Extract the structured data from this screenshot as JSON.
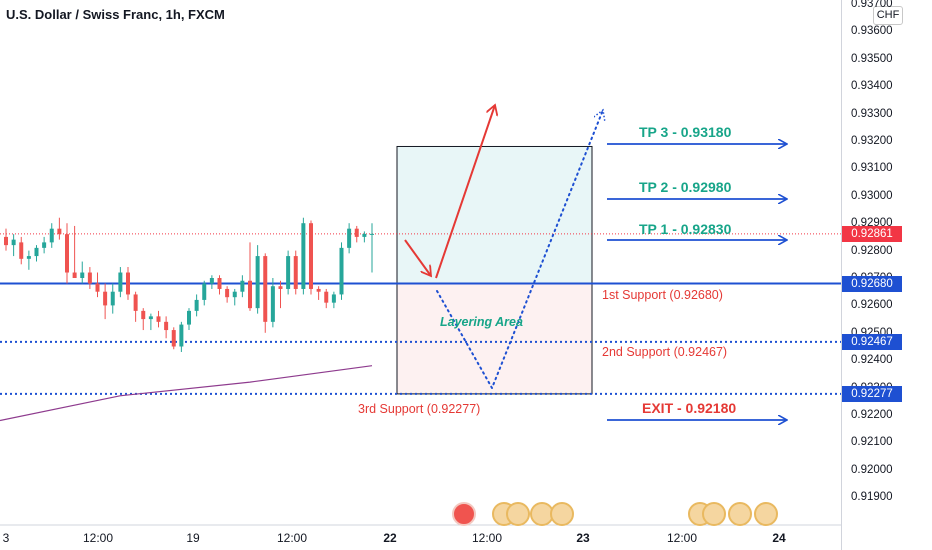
{
  "header": {
    "symbol": "U.S. Dollar / Swiss Franc, 1h, FXCM",
    "currency": "CHF"
  },
  "chart_data": {
    "type": "candlestick",
    "ylim": [
      0.918,
      0.9373
    ],
    "y_ticks": [
      "0.93700",
      "0.93600",
      "0.93500",
      "0.93400",
      "0.93300",
      "0.93200",
      "0.93100",
      "0.93000",
      "0.92900",
      "0.92800",
      "0.92700",
      "0.92600",
      "0.92500",
      "0.92400",
      "0.92300",
      "0.92200",
      "0.92100",
      "0.92000",
      "0.91900"
    ],
    "x_ticks": [
      "3",
      "12:00",
      "19",
      "12:00",
      "22",
      "12:00",
      "23",
      "12:00",
      "24"
    ],
    "price_tags": [
      {
        "value": "0.92861",
        "color": "#f23645"
      },
      {
        "value": "0.92680",
        "color": "#1e50d2"
      },
      {
        "value": "0.92467",
        "color": "#1e50d2"
      },
      {
        "value": "0.92277",
        "color": "#1e50d2"
      }
    ],
    "levels": {
      "current": 0.92861,
      "support1": 0.9268,
      "support2": 0.92467,
      "support3": 0.92277
    },
    "candles": [
      [
        0.9285,
        0.9288,
        0.928,
        0.9282
      ],
      [
        0.9282,
        0.9286,
        0.9278,
        0.9284
      ],
      [
        0.9283,
        0.9285,
        0.9275,
        0.9277
      ],
      [
        0.9277,
        0.928,
        0.9273,
        0.9278
      ],
      [
        0.9278,
        0.9282,
        0.9276,
        0.9281
      ],
      [
        0.9281,
        0.9285,
        0.9279,
        0.9283
      ],
      [
        0.9283,
        0.929,
        0.9281,
        0.9288
      ],
      [
        0.9288,
        0.9292,
        0.9284,
        0.9286
      ],
      [
        0.9286,
        0.929,
        0.9268,
        0.9272
      ],
      [
        0.9272,
        0.9289,
        0.927,
        0.927
      ],
      [
        0.927,
        0.9276,
        0.9268,
        0.9272
      ],
      [
        0.9272,
        0.9274,
        0.9266,
        0.9268
      ],
      [
        0.9268,
        0.9272,
        0.9263,
        0.9265
      ],
      [
        0.9265,
        0.9268,
        0.9255,
        0.926
      ],
      [
        0.926,
        0.9268,
        0.9257,
        0.9265
      ],
      [
        0.9265,
        0.9274,
        0.9263,
        0.9272
      ],
      [
        0.9272,
        0.9274,
        0.9262,
        0.9264
      ],
      [
        0.9264,
        0.9265,
        0.9254,
        0.9258
      ],
      [
        0.9258,
        0.9259,
        0.9251,
        0.9255
      ],
      [
        0.9255,
        0.9257,
        0.9251,
        0.9256
      ],
      [
        0.9256,
        0.9258,
        0.9252,
        0.9254
      ],
      [
        0.9254,
        0.9256,
        0.9248,
        0.9251
      ],
      [
        0.9251,
        0.9252,
        0.9244,
        0.9245
      ],
      [
        0.9245,
        0.9254,
        0.9243,
        0.9253
      ],
      [
        0.9253,
        0.9259,
        0.9251,
        0.9258
      ],
      [
        0.9258,
        0.9264,
        0.9256,
        0.9262
      ],
      [
        0.9262,
        0.9269,
        0.926,
        0.9268
      ],
      [
        0.9268,
        0.9271,
        0.9266,
        0.927
      ],
      [
        0.927,
        0.9271,
        0.9264,
        0.9266
      ],
      [
        0.9266,
        0.9267,
        0.9261,
        0.9263
      ],
      [
        0.9263,
        0.9266,
        0.926,
        0.9265
      ],
      [
        0.9265,
        0.9271,
        0.9263,
        0.9269
      ],
      [
        0.9269,
        0.9283,
        0.9258,
        0.9259
      ],
      [
        0.9259,
        0.9282,
        0.9257,
        0.9278
      ],
      [
        0.9278,
        0.9279,
        0.925,
        0.9254
      ],
      [
        0.9254,
        0.927,
        0.9252,
        0.9267
      ],
      [
        0.9267,
        0.9269,
        0.9259,
        0.9266
      ],
      [
        0.9266,
        0.928,
        0.9264,
        0.9278
      ],
      [
        0.9278,
        0.928,
        0.9264,
        0.9266
      ],
      [
        0.9266,
        0.9292,
        0.9264,
        0.929
      ],
      [
        0.929,
        0.9291,
        0.9264,
        0.9266
      ],
      [
        0.9266,
        0.9267,
        0.9262,
        0.9265
      ],
      [
        0.9265,
        0.9266,
        0.9259,
        0.9261
      ],
      [
        0.9261,
        0.9265,
        0.9259,
        0.9264
      ],
      [
        0.9264,
        0.9283,
        0.9262,
        0.9281
      ],
      [
        0.9281,
        0.929,
        0.9279,
        0.9288
      ],
      [
        0.9288,
        0.9289,
        0.9283,
        0.9285
      ],
      [
        0.9285,
        0.9287,
        0.9283,
        0.92861
      ],
      [
        0.92861,
        0.929,
        0.9272,
        0.92861
      ]
    ],
    "ma": [
      [
        0,
        0.9218
      ],
      [
        120,
        0.9227
      ],
      [
        250,
        0.9232
      ],
      [
        372,
        0.9238
      ]
    ],
    "box": {
      "top": 0.9318,
      "mid": 0.9268,
      "bottom": 0.92277
    },
    "annotations": {
      "layering": "Layering Area",
      "s1": "1st Support (0.92680)",
      "s2": "2nd Support (0.92467)",
      "s3": "3rd Support  (0.92277)",
      "tp3": "TP 3 - 0.93180",
      "tp2": "TP 2 - 0.92980",
      "tp1": "TP 1 - 0.92830",
      "exit": "EXIT - 0.92180"
    }
  }
}
